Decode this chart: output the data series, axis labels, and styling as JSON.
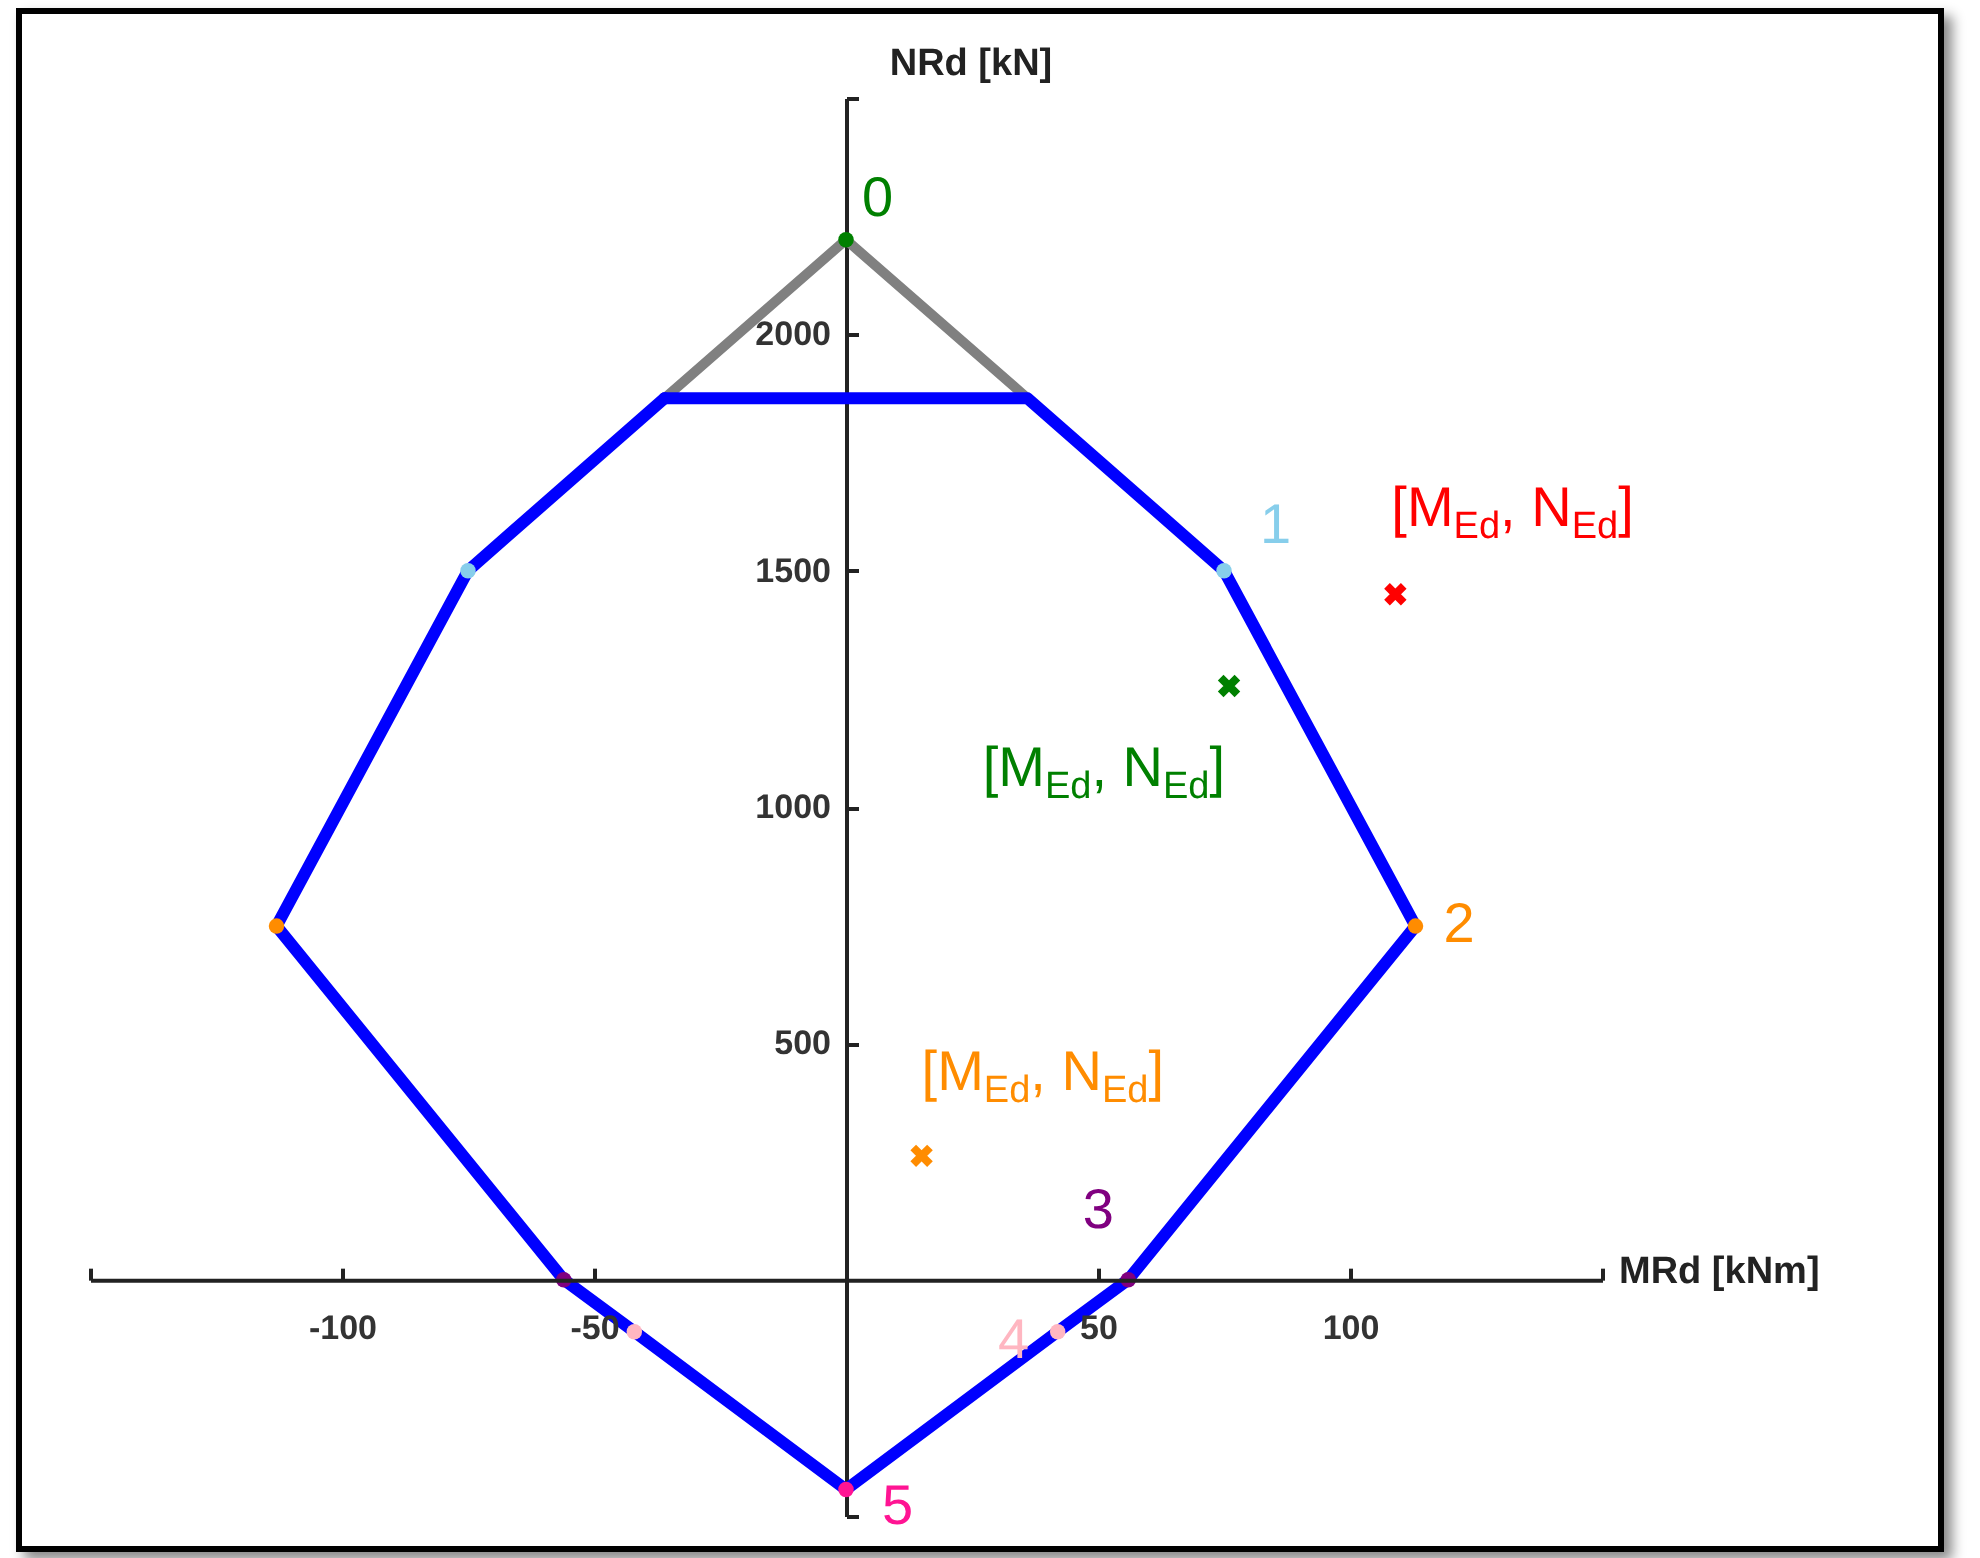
{
  "chart_data": {
    "type": "line",
    "xlabel": "MRd [kNm]",
    "ylabel": "NRd [kN]",
    "xlim": [
      -150,
      150
    ],
    "ylim": [
      -500,
      2500
    ],
    "xticks": [
      {
        "value": -150,
        "label": null
      },
      -100,
      -50,
      50,
      100,
      {
        "value": 150,
        "label": null
      }
    ],
    "yticks": [
      {
        "value": -500,
        "label": null
      },
      500,
      1000,
      1500,
      2000,
      {
        "value": 2500,
        "label": null
      }
    ],
    "grid": false,
    "legend": false,
    "marker": "circle",
    "line_style": "solid",
    "series": [
      {
        "color": "#808080",
        "marker": "none",
        "x": [
          -36,
          0,
          36
        ],
        "values": [
          1865,
          2200,
          1865
        ]
      },
      {
        "color": "#0000ff",
        "marker": "none",
        "x": [
          -36,
          36,
          75,
          113,
          56,
          42,
          0
        ],
        "values": [
          1865,
          1865,
          1500,
          748,
          0,
          -110,
          -444
        ]
      },
      {
        "color": "#0000ff",
        "marker": "none",
        "x": [
          0,
          -42,
          -56,
          -113,
          -75,
          -36
        ],
        "values": [
          -444,
          -110,
          0,
          748,
          1500,
          1865
        ]
      },
      {
        "type": "scatter",
        "name": "0",
        "color": "#008000",
        "x": [
          0
        ],
        "values": [
          2200
        ]
      },
      {
        "type": "scatter",
        "name": "1",
        "color": "#87ceeb",
        "x": [
          75,
          -75
        ],
        "values": [
          1500,
          1500
        ]
      },
      {
        "type": "scatter",
        "name": "2",
        "color": "#ff8c00",
        "x": [
          113,
          -113
        ],
        "values": [
          748,
          748
        ]
      },
      {
        "type": "scatter",
        "name": "3",
        "color": "#800080",
        "x": [
          56,
          -56
        ],
        "values": [
          0,
          0
        ]
      },
      {
        "type": "scatter",
        "name": "4",
        "color": "#ffb6c1",
        "x": [
          42,
          -42
        ],
        "values": [
          -110,
          -110
        ]
      },
      {
        "type": "scatter",
        "name": "5",
        "color": "#ff1493",
        "x": [
          0
        ],
        "values": [
          -444
        ]
      },
      {
        "type": "scatter",
        "name": "[M$_{Ed}$, N$_{Ed}$]",
        "color": "#ff0000",
        "marker": "cross",
        "x": [
          109
        ],
        "values": [
          1450
        ]
      },
      {
        "type": "scatter",
        "name": "[M$_{Ed}$, N$_{Ed}$]",
        "color": "#008000",
        "marker": "cross",
        "x": [
          76
        ],
        "values": [
          1256
        ]
      },
      {
        "type": "scatter",
        "name": "[M$_{Ed}$, N$_{Ed}$]",
        "color": "#ff8c00",
        "marker": "cross",
        "x": [
          15
        ],
        "values": [
          262
        ]
      }
    ]
  }
}
